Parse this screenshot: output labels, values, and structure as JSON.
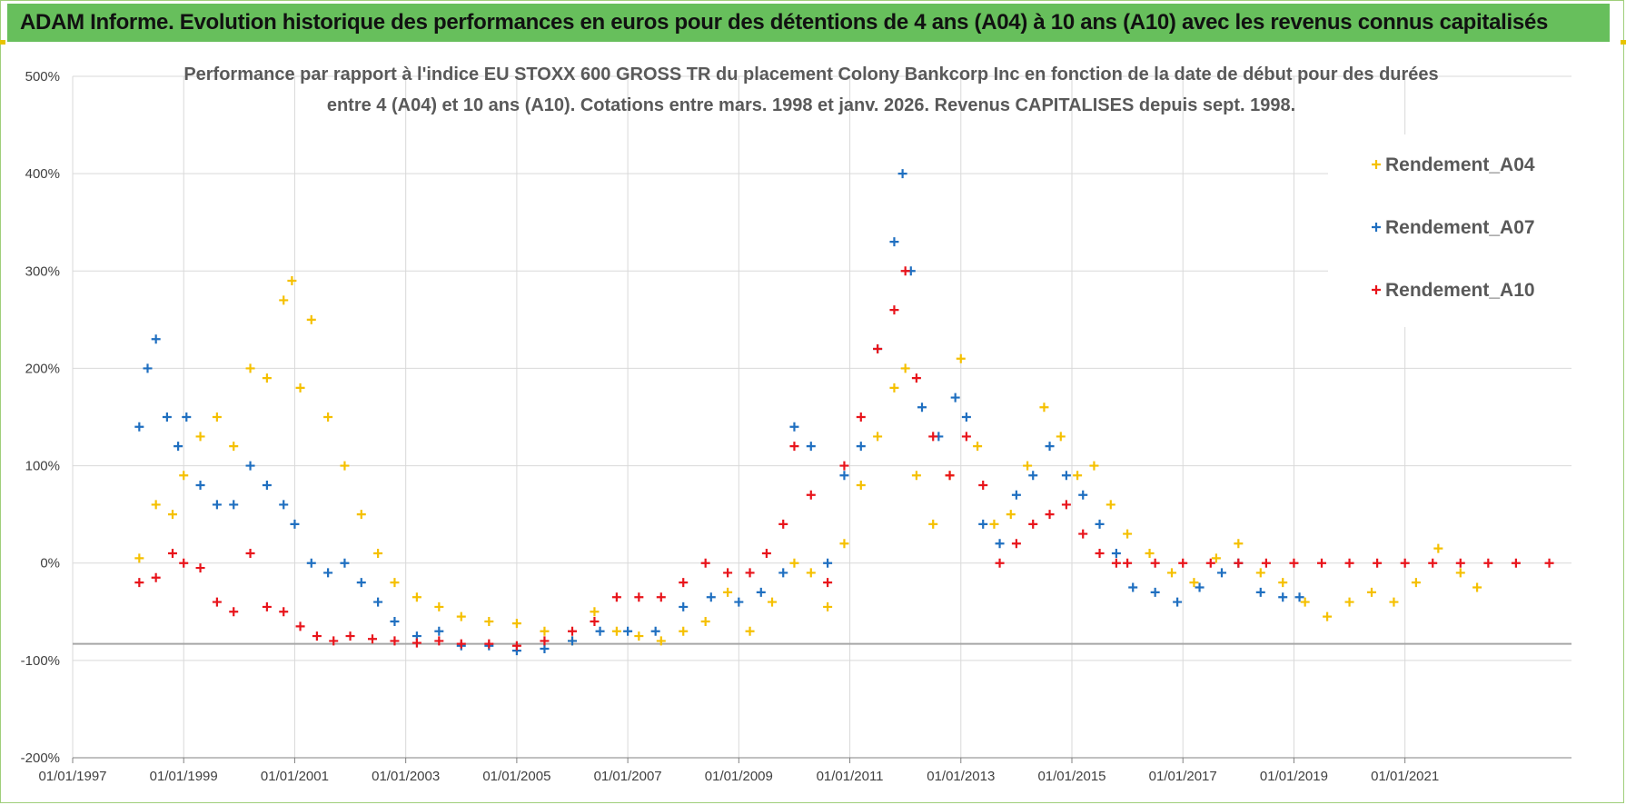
{
  "banner": {
    "title": "ADAM Informe. Evolution historique des performances en euros pour des détentions de 4 ans (A04) à 10 ans (A10) avec les revenus connus capitalisés"
  },
  "colors": {
    "banner_bg": "#67bf5c",
    "a04": "#f5c000",
    "a07": "#1f6fc0",
    "a10": "#e8141b",
    "grid": "#d9d9d9",
    "threshold_line": "#a6a6a6"
  },
  "chart_data": {
    "type": "scatter",
    "title_line1": "Performance par rapport à l'indice EU STOXX 600 GROSS TR  du placement Colony Bankcorp Inc en fonction de la date de début pour des durées",
    "title_line2": "entre 4 (A04) et 10 ans (A10).  Cotations entre mars. 1998 et janv. 2026. Revenus CAPITALISES depuis sept. 1998.",
    "y_unit": "%",
    "ylim": [
      -200,
      500
    ],
    "y_ticks": [
      -200,
      -100,
      0,
      100,
      200,
      300,
      400,
      500
    ],
    "y_tick_labels": [
      "-200%",
      "-100%",
      "0%",
      "100%",
      "200%",
      "300%",
      "400%",
      "500%"
    ],
    "xlim": [
      1997.0,
      2024.0
    ],
    "x_ticks": [
      1997,
      1999,
      2001,
      2003,
      2005,
      2007,
      2009,
      2011,
      2013,
      2015,
      2017,
      2019,
      2021
    ],
    "x_tick_labels": [
      "01/01/1997",
      "01/01/1999",
      "01/01/2001",
      "01/01/2003",
      "01/01/2005",
      "01/01/2007",
      "01/01/2009",
      "01/01/2011",
      "01/01/2013",
      "01/01/2015",
      "01/01/2017",
      "01/01/2019",
      "01/01/2021"
    ],
    "threshold": -83,
    "legend_position": "top-right",
    "series": [
      {
        "name": "Rendement_A04",
        "color": "#f5c000",
        "x": [
          1998.2,
          1998.5,
          1998.8,
          1999.0,
          1999.3,
          1999.6,
          1999.9,
          2000.2,
          2000.5,
          2000.8,
          2000.95,
          2001.1,
          2001.3,
          2001.6,
          2001.9,
          2002.2,
          2002.5,
          2002.8,
          2003.2,
          2003.6,
          2004.0,
          2004.5,
          2005.0,
          2005.5,
          2006.0,
          2006.4,
          2006.8,
          2007.2,
          2007.6,
          2008.0,
          2008.4,
          2008.8,
          2009.2,
          2009.6,
          2010.0,
          2010.3,
          2010.6,
          2010.9,
          2011.2,
          2011.5,
          2011.8,
          2012.0,
          2012.2,
          2012.5,
          2012.8,
          2013.0,
          2013.3,
          2013.6,
          2013.9,
          2014.2,
          2014.5,
          2014.8,
          2015.1,
          2015.4,
          2015.7,
          2016.0,
          2016.4,
          2016.8,
          2017.2,
          2017.6,
          2018.0,
          2018.4,
          2018.8,
          2019.2,
          2019.6,
          2020.0,
          2020.4,
          2020.8,
          2021.2,
          2021.6,
          2022.0,
          2022.3
        ],
        "y": [
          5,
          60,
          50,
          90,
          130,
          150,
          120,
          200,
          190,
          270,
          290,
          180,
          250,
          150,
          100,
          50,
          10,
          -20,
          -35,
          -45,
          -55,
          -60,
          -62,
          -70,
          -80,
          -50,
          -70,
          -75,
          -80,
          -70,
          -60,
          -30,
          -70,
          -40,
          0,
          -10,
          -45,
          20,
          80,
          130,
          180,
          200,
          90,
          40,
          90,
          210,
          120,
          40,
          50,
          100,
          160,
          130,
          90,
          100,
          60,
          30,
          10,
          -10,
          -20,
          5,
          20,
          -10,
          -20,
          -40,
          -55,
          -40,
          -30,
          -40,
          -20,
          15,
          -10,
          -25
        ]
      },
      {
        "name": "Rendement_A07",
        "color": "#1f6fc0",
        "x": [
          1998.2,
          1998.35,
          1998.5,
          1998.7,
          1998.9,
          1999.05,
          1999.3,
          1999.6,
          1999.9,
          2000.2,
          2000.5,
          2000.8,
          2001.0,
          2001.3,
          2001.6,
          2001.9,
          2002.2,
          2002.5,
          2002.8,
          2003.2,
          2003.6,
          2004.0,
          2004.5,
          2005.0,
          2005.5,
          2006.0,
          2006.5,
          2007.0,
          2007.5,
          2008.0,
          2008.5,
          2009.0,
          2009.4,
          2009.8,
          2010.0,
          2010.3,
          2010.6,
          2010.9,
          2011.2,
          2011.5,
          2011.8,
          2011.95,
          2012.1,
          2012.3,
          2012.6,
          2012.9,
          2013.1,
          2013.4,
          2013.7,
          2014.0,
          2014.3,
          2014.6,
          2014.9,
          2015.2,
          2015.5,
          2015.8,
          2016.1,
          2016.5,
          2016.9,
          2017.3,
          2017.7,
          2018.0,
          2018.4,
          2018.8,
          2019.1
        ],
        "y": [
          140,
          200,
          230,
          150,
          120,
          150,
          80,
          60,
          60,
          100,
          80,
          60,
          40,
          0,
          -10,
          0,
          -20,
          -40,
          -60,
          -75,
          -70,
          -85,
          -85,
          -90,
          -88,
          -80,
          -70,
          -70,
          -70,
          -45,
          -35,
          -40,
          -30,
          -10,
          140,
          120,
          0,
          90,
          120,
          220,
          330,
          400,
          300,
          160,
          130,
          170,
          150,
          40,
          20,
          70,
          90,
          120,
          90,
          70,
          40,
          10,
          -25,
          -30,
          -40,
          -25,
          -10,
          0,
          -30,
          -35,
          -35
        ]
      },
      {
        "name": "Rendement_A10",
        "color": "#e8141b",
        "x": [
          1998.2,
          1998.5,
          1998.8,
          1999.0,
          1999.3,
          1999.6,
          1999.9,
          2000.2,
          2000.5,
          2000.8,
          2001.1,
          2001.4,
          2001.7,
          2002.0,
          2002.4,
          2002.8,
          2003.2,
          2003.6,
          2004.0,
          2004.5,
          2005.0,
          2005.5,
          2006.0,
          2006.4,
          2006.8,
          2007.2,
          2007.6,
          2008.0,
          2008.4,
          2008.8,
          2009.2,
          2009.5,
          2009.8,
          2010.0,
          2010.3,
          2010.6,
          2010.9,
          2011.2,
          2011.5,
          2011.8,
          2012.0,
          2012.2,
          2012.5,
          2012.8,
          2013.1,
          2013.4,
          2013.7,
          2014.0,
          2014.3,
          2014.6,
          2014.9,
          2015.2,
          2015.5,
          2015.8,
          2016.0,
          2016.5,
          2017.0,
          2017.5,
          2018.0,
          2018.5,
          2019.0,
          2019.5,
          2020.0,
          2020.5,
          2021.0,
          2021.5,
          2022.0,
          2022.5,
          2023.0,
          2023.6
        ],
        "y": [
          -20,
          -15,
          10,
          0,
          -5,
          -40,
          -50,
          10,
          -45,
          -50,
          -65,
          -75,
          -80,
          -75,
          -78,
          -80,
          -82,
          -80,
          -83,
          -83,
          -85,
          -80,
          -70,
          -60,
          -35,
          -35,
          -35,
          -20,
          0,
          -10,
          -10,
          10,
          40,
          120,
          70,
          -20,
          100,
          150,
          220,
          260,
          300,
          190,
          130,
          90,
          130,
          80,
          0,
          20,
          40,
          50,
          60,
          30,
          10,
          0,
          0,
          0,
          0,
          0,
          0,
          0,
          0,
          0,
          0,
          0,
          0,
          0,
          0,
          0,
          0,
          0
        ]
      }
    ]
  }
}
